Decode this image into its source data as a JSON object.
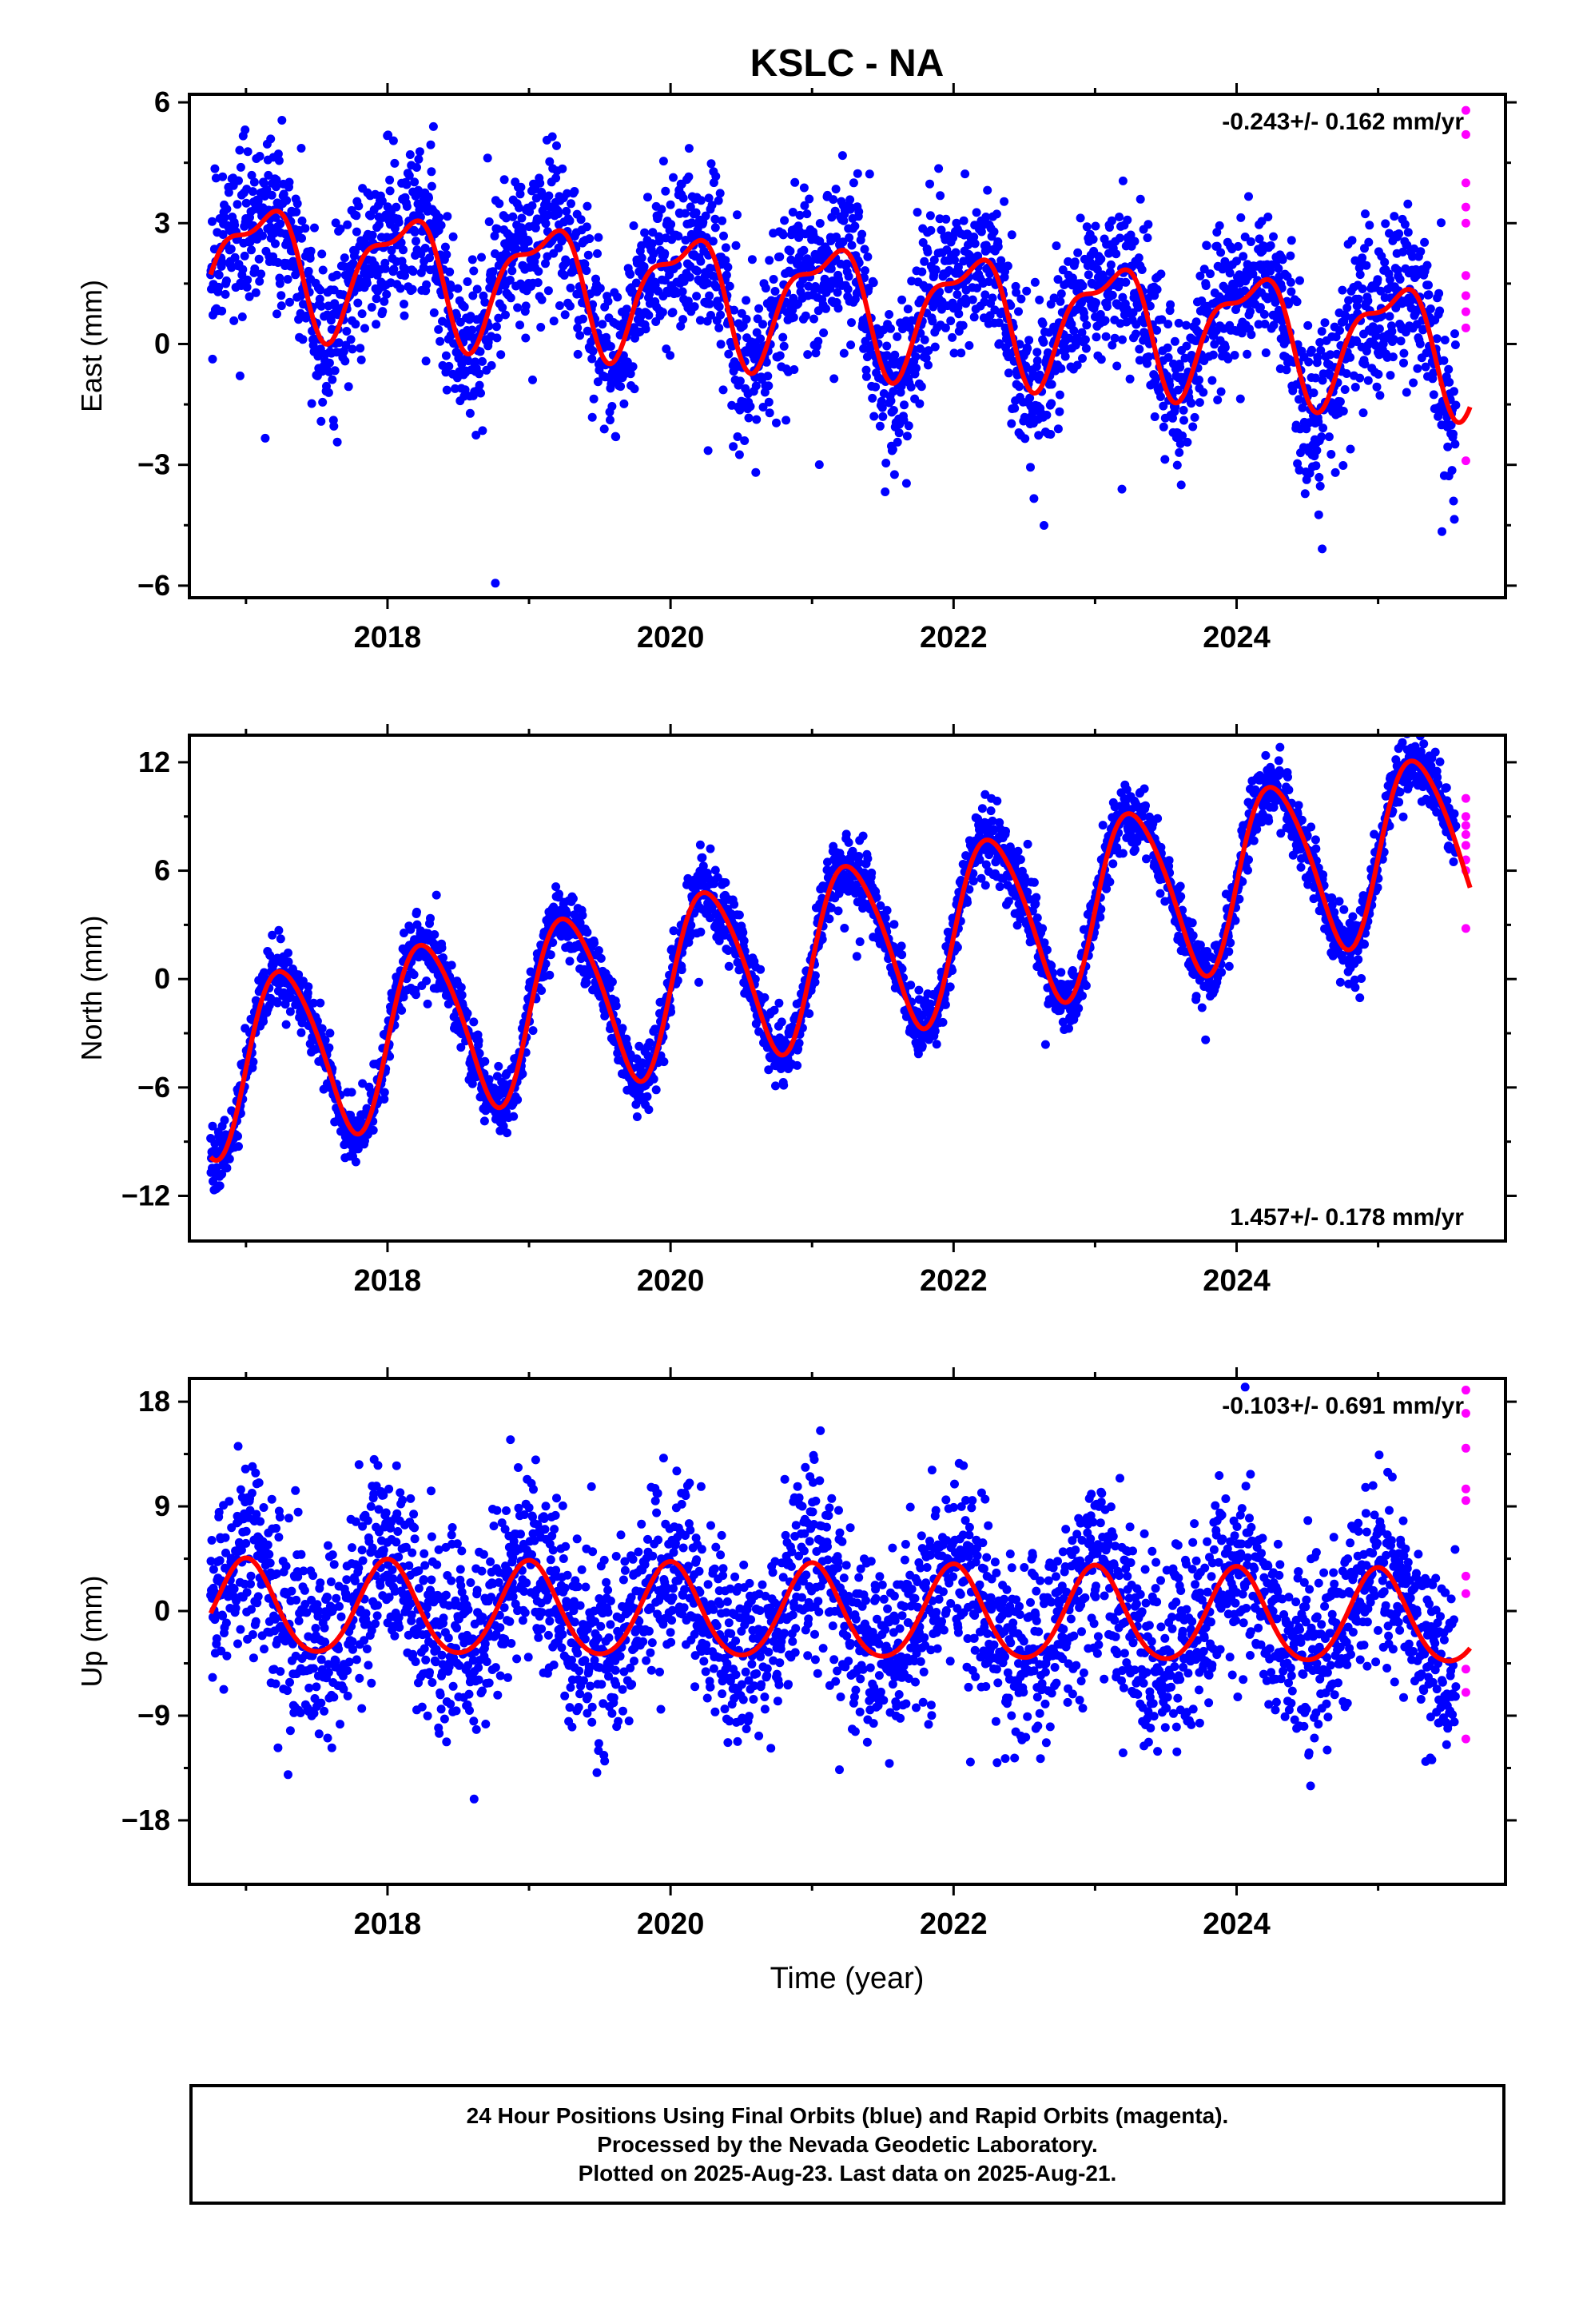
{
  "title": "KSLC - NA",
  "time_axis_label": "Time (year)",
  "colors": {
    "final": "#0000ff",
    "rapid": "#ff00ff",
    "model": "#ff0000",
    "axis": "#000000"
  },
  "chart_data": [
    {
      "type": "scatter",
      "component": "East",
      "ylabel": "East (mm)",
      "rate_label": "-0.243+/- 0.162 mm/yr",
      "rate_position": "top-right",
      "xlim": [
        2016.6,
        2025.9
      ],
      "ylim": [
        -6.3,
        6.2
      ],
      "yticks": [
        -6,
        -3,
        0,
        3,
        6
      ],
      "ytick_labels": [
        "−6",
        "−3",
        "0",
        "3",
        "6"
      ],
      "xticks": [
        2018,
        2020,
        2022,
        2024
      ],
      "xtick_labels": [
        "2018",
        "2020",
        "2022",
        "2024"
      ],
      "model": {
        "offset": 2.1,
        "rate": -0.243,
        "start": 2016.75,
        "amp_annual": 1.4,
        "phase_annual": 0.1,
        "amp_semi": 0.55,
        "phase_semi": 0.3,
        "end": 2025.65
      },
      "scatter_sd": 1.0,
      "final_range": [
        2016.75,
        2025.55
      ],
      "rapid_x": 2025.62,
      "rapid_y": [
        5.8,
        5.2,
        4.0,
        3.4,
        3.0,
        1.7,
        1.2,
        0.8,
        0.4,
        -2.9
      ]
    },
    {
      "type": "scatter",
      "component": "North",
      "ylabel": "North (mm)",
      "rate_label": "1.457+/- 0.178 mm/yr",
      "rate_position": "bottom-right",
      "xlim": [
        2016.6,
        2025.9
      ],
      "ylim": [
        -14.5,
        13.5
      ],
      "yticks": [
        -12,
        -6,
        0,
        6,
        12
      ],
      "ytick_labels": [
        "−12",
        "−6",
        "0",
        "6",
        "12"
      ],
      "xticks": [
        2018,
        2020,
        2022,
        2024
      ],
      "xtick_labels": [
        "2018",
        "2020",
        "2022",
        "2024"
      ],
      "model": {
        "offset": -4.9,
        "rate": 1.457,
        "start": 2016.75,
        "amp_annual": 4.8,
        "phase_annual": 0.27,
        "amp_semi": 0.6,
        "phase_semi": 0.1,
        "end": 2025.65
      },
      "scatter_sd": 0.9,
      "final_range": [
        2016.75,
        2025.55
      ],
      "rapid_x": 2025.62,
      "rapid_y": [
        10.0,
        9.0,
        8.5,
        8.0,
        7.4,
        6.6,
        6.0,
        2.8
      ]
    },
    {
      "type": "scatter",
      "component": "Up",
      "ylabel": "Up (mm)",
      "rate_label": "-0.103+/- 0.691 mm/yr",
      "rate_position": "top-right",
      "xlim": [
        2016.6,
        2025.9
      ],
      "ylim": [
        -23.5,
        20.0
      ],
      "yticks": [
        -18,
        -9,
        0,
        9,
        18
      ],
      "ytick_labels": [
        "−18",
        "−9",
        "0",
        "9",
        "18"
      ],
      "xticks": [
        2018,
        2020,
        2022,
        2024
      ],
      "xtick_labels": [
        "2018",
        "2020",
        "2022",
        "2024"
      ],
      "model": {
        "offset": 0.2,
        "rate": -0.103,
        "start": 2016.75,
        "amp_annual": 4.0,
        "phase_annual": 0.0,
        "amp_semi": 0.4,
        "phase_semi": 0.0,
        "end": 2025.65
      },
      "scatter_sd": 4.0,
      "final_range": [
        2016.75,
        2025.55
      ],
      "rapid_x": 2025.62,
      "rapid_y": [
        19.0,
        17.0,
        14.0,
        10.5,
        9.5,
        3.0,
        1.5,
        -5.0,
        -7.0,
        -11.0
      ]
    }
  ],
  "caption": [
    "24 Hour Positions Using Final Orbits (blue) and Rapid Orbits (magenta).",
    "Processed by the Nevada Geodetic Laboratory.",
    "Plotted on 2025-Aug-23. Last data on 2025-Aug-21."
  ]
}
